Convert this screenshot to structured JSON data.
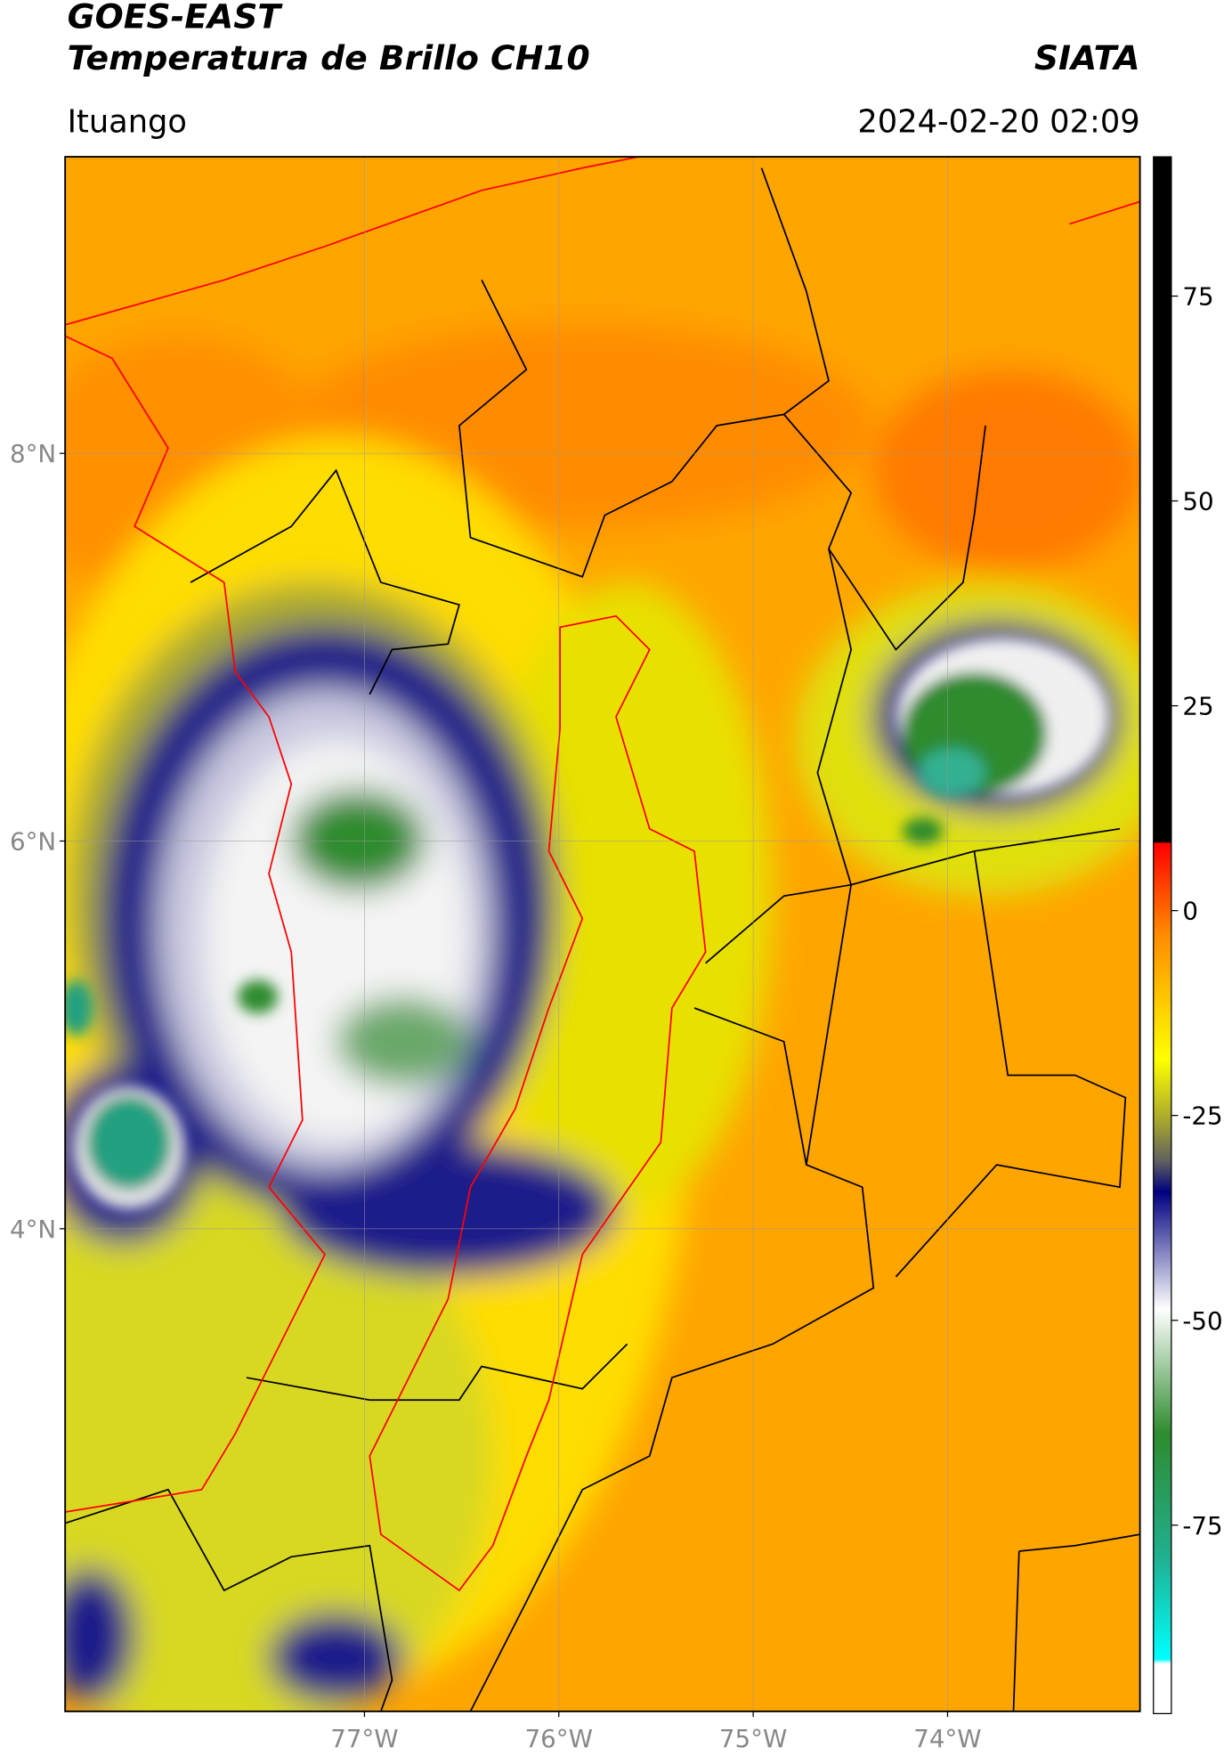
{
  "header": {
    "title": "GOES-EAST",
    "subtitle": "Temperatura de Brillo CH10",
    "source": "SIATA",
    "location": "Ituango",
    "timestamp": "2024-02-20 02:09"
  },
  "map": {
    "lon_range": [
      -78.54,
      -73.01
    ],
    "lat_range": [
      1.51,
      9.53
    ],
    "lat_ticks": [
      {
        "value": 8,
        "label": "8°N"
      },
      {
        "value": 6,
        "label": "6°N"
      },
      {
        "value": 4,
        "label": "4°N"
      }
    ],
    "lon_ticks": [
      {
        "value": -77,
        "label": "77°W"
      },
      {
        "value": -76,
        "label": "76°W"
      },
      {
        "value": -75,
        "label": "75°W"
      },
      {
        "value": -74,
        "label": "74°W"
      }
    ]
  },
  "colorbar": {
    "range": [
      -98,
      92
    ],
    "ticks": [
      75,
      50,
      25,
      0,
      -25,
      -50,
      -75
    ]
  }
}
